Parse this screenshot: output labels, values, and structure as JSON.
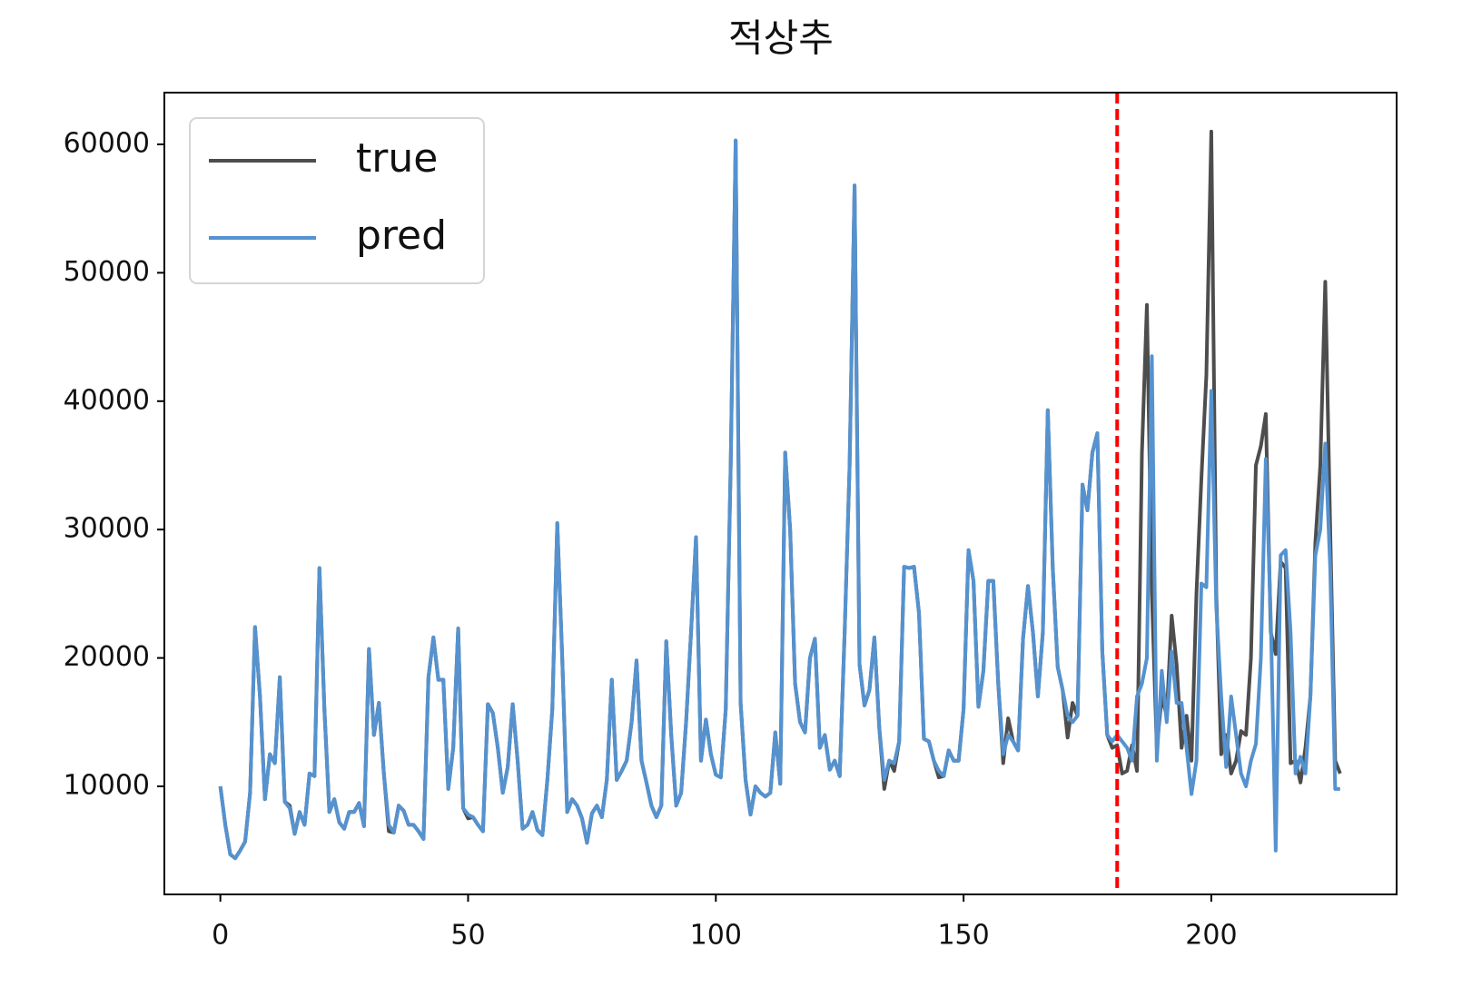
{
  "chart_data": {
    "type": "line",
    "title": "적상추",
    "x": [
      0,
      1,
      2,
      3,
      4,
      5,
      6,
      7,
      8,
      9,
      10,
      11,
      12,
      13,
      14,
      15,
      16,
      17,
      18,
      19,
      20,
      21,
      22,
      23,
      24,
      25,
      26,
      27,
      28,
      29,
      30,
      31,
      32,
      33,
      34,
      35,
      36,
      37,
      38,
      39,
      40,
      41,
      42,
      43,
      44,
      45,
      46,
      47,
      48,
      49,
      50,
      51,
      52,
      53,
      54,
      55,
      56,
      57,
      58,
      59,
      60,
      61,
      62,
      63,
      64,
      65,
      66,
      67,
      68,
      69,
      70,
      71,
      72,
      73,
      74,
      75,
      76,
      77,
      78,
      79,
      80,
      81,
      82,
      83,
      84,
      85,
      86,
      87,
      88,
      89,
      90,
      91,
      92,
      93,
      94,
      95,
      96,
      97,
      98,
      99,
      100,
      101,
      102,
      103,
      104,
      105,
      106,
      107,
      108,
      109,
      110,
      111,
      112,
      113,
      114,
      115,
      116,
      117,
      118,
      119,
      120,
      121,
      122,
      123,
      124,
      125,
      126,
      127,
      128,
      129,
      130,
      131,
      132,
      133,
      134,
      135,
      136,
      137,
      138,
      139,
      140,
      141,
      142,
      143,
      144,
      145,
      146,
      147,
      148,
      149,
      150,
      151,
      152,
      153,
      154,
      155,
      156,
      157,
      158,
      159,
      160,
      161,
      162,
      163,
      164,
      165,
      166,
      167,
      168,
      169,
      170,
      171,
      172,
      173,
      174,
      175,
      176,
      177,
      178,
      179,
      180,
      181,
      182,
      183,
      184,
      185,
      186,
      187,
      188,
      189,
      190,
      191,
      192,
      193,
      194,
      195,
      196,
      197,
      198,
      199,
      200,
      201,
      202,
      203,
      204,
      205,
      206,
      207,
      208,
      209,
      210,
      211,
      212,
      213,
      214,
      215,
      216,
      217,
      218,
      219,
      220,
      221,
      222,
      223,
      224,
      225,
      226
    ],
    "series": [
      {
        "name": "true",
        "color": "#4d4d4d",
        "values": [
          10000,
          7000,
          4700,
          4400,
          5000,
          5700,
          9500,
          22400,
          17000,
          9000,
          12500,
          11800,
          18500,
          8800,
          8500,
          6300,
          8000,
          7000,
          11000,
          10800,
          27000,
          16000,
          8000,
          9000,
          7200,
          6700,
          8000,
          8000,
          8700,
          6900,
          20700,
          14000,
          16500,
          11000,
          6500,
          6400,
          8500,
          8100,
          7000,
          7000,
          6500,
          5900,
          18500,
          21600,
          18300,
          18300,
          9800,
          13000,
          22300,
          8300,
          7500,
          7600,
          7000,
          6500,
          16400,
          15700,
          13000,
          9500,
          11500,
          16400,
          12000,
          6700,
          7000,
          8000,
          6600,
          6200,
          10500,
          16000,
          30500,
          20000,
          8000,
          9000,
          8500,
          7500,
          5600,
          7900,
          8500,
          7600,
          10500,
          18300,
          10500,
          11200,
          12000,
          15000,
          19800,
          12000,
          10300,
          8500,
          7600,
          8500,
          21300,
          14000,
          8500,
          9500,
          15000,
          22000,
          29400,
          12000,
          15200,
          12500,
          10900,
          10700,
          16000,
          35000,
          60300,
          16500,
          10500,
          7800,
          10000,
          9500,
          9200,
          9500,
          14200,
          10200,
          36000,
          30000,
          18000,
          15000,
          14200,
          20000,
          21500,
          13000,
          14000,
          11300,
          12000,
          10800,
          22000,
          35000,
          56800,
          19500,
          16300,
          17500,
          21600,
          14500,
          9800,
          12000,
          11200,
          13500,
          27100,
          27000,
          27100,
          23500,
          13700,
          13500,
          12000,
          10700,
          10800,
          12800,
          12000,
          12000,
          16000,
          28400,
          26000,
          16200,
          19000,
          26000,
          26000,
          18000,
          11800,
          15300,
          13500,
          12800,
          21500,
          25600,
          22000,
          17000,
          22000,
          39300,
          27000,
          19300,
          17500,
          13800,
          16500,
          15500,
          33500,
          31500,
          36000,
          37500,
          20500,
          14000,
          13000,
          13200,
          11000,
          11200,
          13200,
          11200,
          36000,
          47500,
          25000,
          13000,
          17000,
          15500,
          23300,
          19500,
          13000,
          15500,
          12000,
          25000,
          34000,
          42000,
          61000,
          25000,
          12500,
          14000,
          11000,
          12000,
          14300,
          14000,
          20000,
          35000,
          36500,
          39000,
          22000,
          20300,
          27500,
          27000,
          11800,
          12000,
          10300,
          13000,
          17000,
          29000,
          35000,
          49300,
          30000,
          12000,
          11000
        ]
      },
      {
        "name": "pred",
        "color": "#5592cf",
        "values": [
          10000,
          7000,
          4700,
          4400,
          5000,
          5700,
          9500,
          22400,
          17000,
          9000,
          12500,
          11800,
          18500,
          8800,
          8300,
          6300,
          8000,
          7000,
          11000,
          10800,
          27000,
          16000,
          8000,
          9000,
          7200,
          6700,
          8000,
          8000,
          8700,
          6900,
          20700,
          14000,
          16500,
          11000,
          7000,
          6400,
          8500,
          8100,
          7000,
          7000,
          6500,
          5900,
          18500,
          21600,
          18300,
          18300,
          9800,
          13000,
          22300,
          8300,
          7800,
          7600,
          7000,
          6500,
          16400,
          15700,
          13000,
          9500,
          11500,
          16400,
          12000,
          6700,
          7000,
          8000,
          6600,
          6200,
          10500,
          16000,
          30500,
          20000,
          8000,
          9000,
          8500,
          7500,
          5600,
          7900,
          8500,
          7600,
          10500,
          18300,
          10500,
          11200,
          12000,
          15000,
          19800,
          12000,
          10300,
          8500,
          7600,
          8500,
          21300,
          14000,
          8500,
          9500,
          15000,
          22000,
          29400,
          12000,
          15200,
          12500,
          10900,
          10700,
          16000,
          35000,
          60300,
          16500,
          10500,
          7800,
          10000,
          9500,
          9200,
          9500,
          14200,
          10200,
          36000,
          30000,
          18000,
          15000,
          14200,
          20000,
          21500,
          13000,
          14000,
          11300,
          12000,
          10800,
          22000,
          35000,
          56800,
          19500,
          16300,
          17500,
          21600,
          14500,
          10500,
          12000,
          11800,
          13500,
          27100,
          27000,
          27100,
          23500,
          13700,
          13500,
          12000,
          11200,
          10800,
          12800,
          12000,
          12000,
          16000,
          28400,
          26000,
          16200,
          19000,
          26000,
          26000,
          18000,
          12500,
          14000,
          13500,
          12800,
          21500,
          25600,
          22000,
          17000,
          22000,
          39300,
          27000,
          19300,
          17500,
          15500,
          15000,
          15500,
          33500,
          31500,
          36000,
          37500,
          20500,
          14000,
          13500,
          14000,
          13500,
          13000,
          12000,
          17000,
          18000,
          20000,
          43500,
          12000,
          19000,
          15000,
          20500,
          16500,
          16500,
          13000,
          9400,
          12000,
          25800,
          25500,
          40800,
          24000,
          17000,
          11500,
          17000,
          14000,
          11000,
          10000,
          12000,
          13300,
          20000,
          35500,
          23000,
          5000,
          28000,
          28400,
          22000,
          11000,
          12300,
          11000,
          17000,
          28000,
          30000,
          36700,
          27000,
          9800,
          9800
        ]
      }
    ],
    "xlim": [
      -11.3,
      237.4
    ],
    "ylim": [
      1584,
      64031
    ],
    "xticks": [
      0,
      50,
      100,
      150,
      200
    ],
    "yticks": [
      10000,
      20000,
      30000,
      40000,
      50000,
      60000
    ],
    "vline": {
      "x": 181,
      "color": "red"
    },
    "legend": "upper left",
    "grid": false
  }
}
